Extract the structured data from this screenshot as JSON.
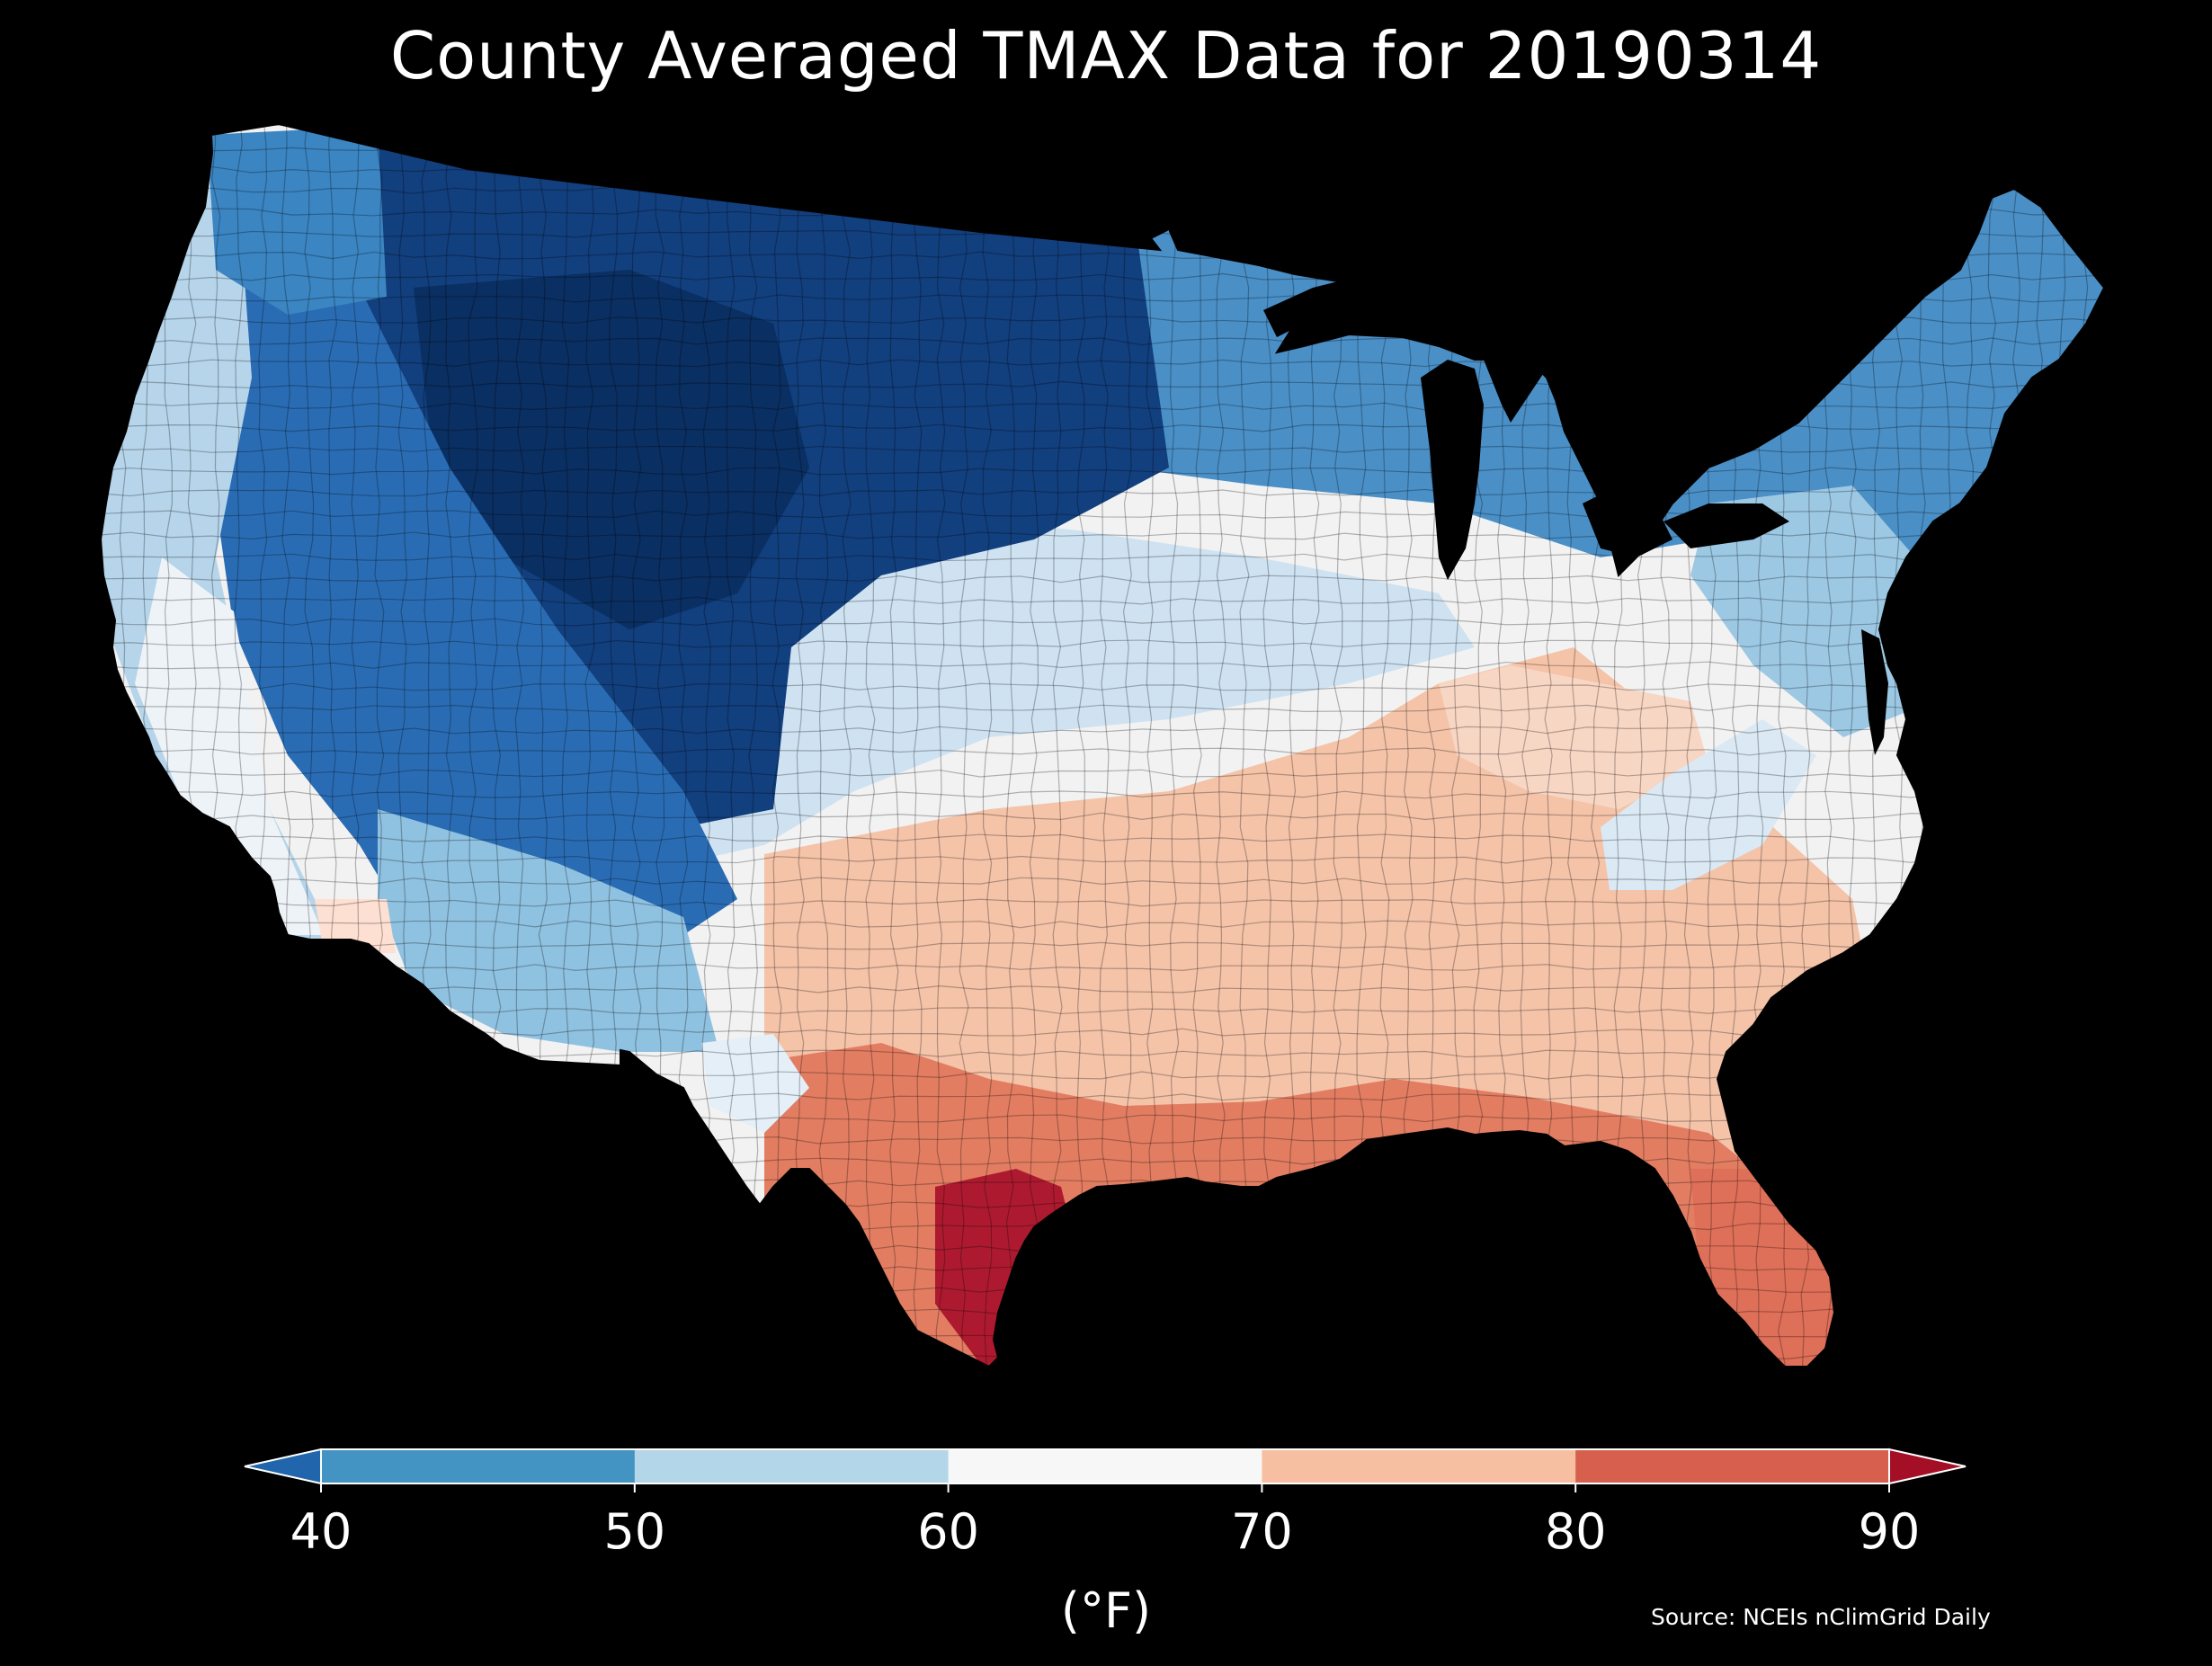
{
  "title": "County Averaged TMAX Data for 20190314",
  "colorbar": {
    "label": "(°F)",
    "ticks": [
      "40",
      "50",
      "60",
      "70",
      "80",
      "90"
    ],
    "bins": [
      {
        "range": "<40",
        "color": "#2166ac"
      },
      {
        "range": "40-50",
        "color": "#4393c3"
      },
      {
        "range": "50-60",
        "color": "#b4d6e9"
      },
      {
        "range": "60-70",
        "color": "#f7f7f7"
      },
      {
        "range": "70-80",
        "color": "#f6bfa2"
      },
      {
        "range": "80-90",
        "color": "#d6604d"
      },
      {
        "range": ">90",
        "color": "#a50f26"
      }
    ],
    "extend": "both"
  },
  "source": "Source: NCEIs nClimGrid Daily",
  "map": {
    "region": "Contiguous United States",
    "variable": "TMAX",
    "unit": "°F",
    "date": "20190314",
    "background_color": "#000000",
    "regions": [
      {
        "name": "northern-rockies-plains",
        "approx_f": 30,
        "color": "#0c3d78"
      },
      {
        "name": "interior-west",
        "approx_f": 38,
        "color": "#2a6cb4"
      },
      {
        "name": "great-lakes-northeast",
        "approx_f": 45,
        "color": "#4a8fc6"
      },
      {
        "name": "pacific-coast",
        "approx_f": 55,
        "color": "#b6d5ea"
      },
      {
        "name": "central-plains",
        "approx_f": 58,
        "color": "#cfe2f1"
      },
      {
        "name": "ohio-valley",
        "approx_f": 64,
        "color": "#f4f4f4"
      },
      {
        "name": "southern-plains-southeast",
        "approx_f": 75,
        "color": "#f4c3a8"
      },
      {
        "name": "gulf-coast-florida",
        "approx_f": 82,
        "color": "#e07a60"
      },
      {
        "name": "south-texas",
        "approx_f": 90,
        "color": "#a80f28"
      }
    ]
  }
}
